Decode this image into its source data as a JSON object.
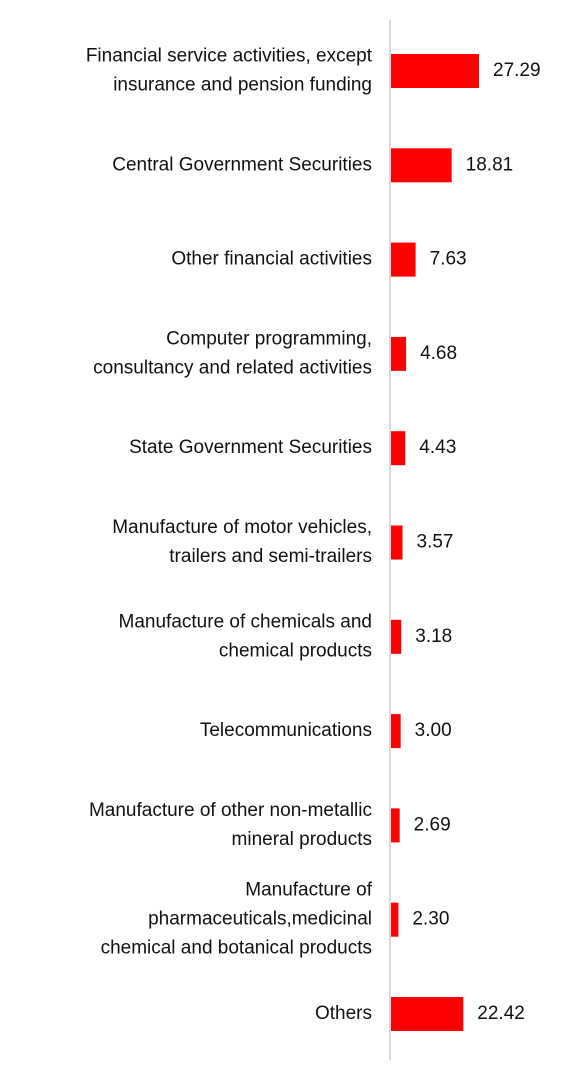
{
  "chart_data": {
    "type": "bar",
    "orientation": "horizontal",
    "categories": [
      [
        "Financial service activities, except",
        "insurance and pension funding"
      ],
      [
        "Central Government Securities"
      ],
      [
        "Other financial activities"
      ],
      [
        "Computer programming,",
        "consultancy and related activities"
      ],
      [
        "State Government Securities"
      ],
      [
        "Manufacture of motor vehicles,",
        "trailers and semi-trailers"
      ],
      [
        "Manufacture of chemicals and",
        "chemical products"
      ],
      [
        "Telecommunications"
      ],
      [
        "Manufacture of other non-metallic",
        "mineral products"
      ],
      [
        "Manufacture of",
        "pharmaceuticals,medicinal",
        "chemical and botanical products"
      ],
      [
        "Others"
      ]
    ],
    "values": [
      27.29,
      18.81,
      7.63,
      4.68,
      4.43,
      3.57,
      3.18,
      3.0,
      2.69,
      2.3,
      22.42
    ],
    "value_labels": [
      "27.29",
      "18.81",
      "7.63",
      "4.68",
      "4.43",
      "3.57",
      "3.18",
      "3.00",
      "2.69",
      "2.30",
      "22.42"
    ],
    "bar_color": "#ff0000",
    "axis_color": "#d9d9d9",
    "text_color": "#111111",
    "title": "",
    "xlabel": "",
    "ylabel": "",
    "xlim": [
      0,
      100
    ],
    "grid": false,
    "legend": "none"
  }
}
